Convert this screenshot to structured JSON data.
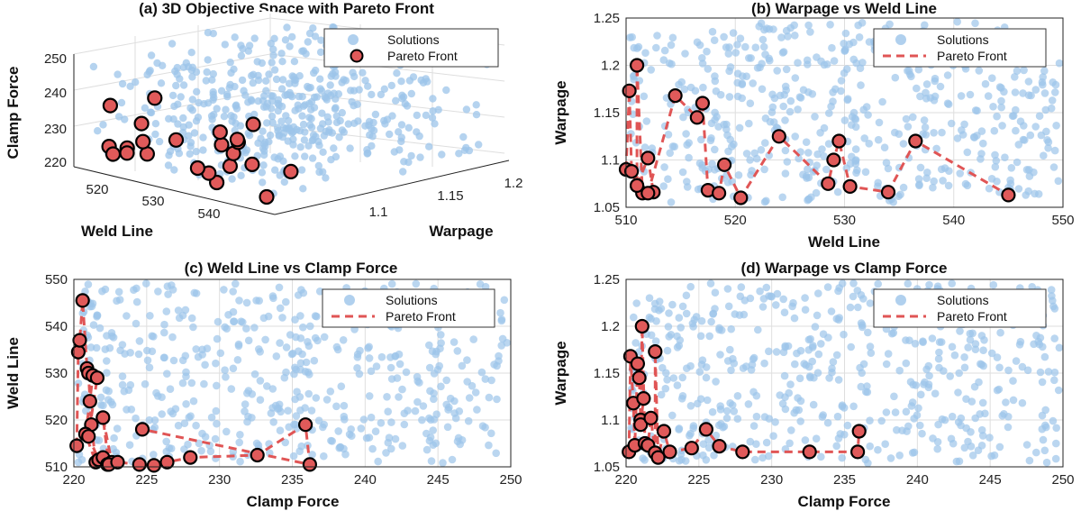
{
  "colors": {
    "solutions": "#9cc4ea",
    "pareto_fill": "#e05a5a",
    "pareto_edge": "#000000",
    "pareto_line": "#e05555"
  },
  "chart_data": [
    {
      "id": "a",
      "type": "scatter3d",
      "title": "(a) 3D Objective Space with Pareto Front",
      "xlabel": "Weld Line",
      "ylabel": "Warpage",
      "zlabel": "Clamp Force",
      "xticks": [
        "520",
        "530",
        "540"
      ],
      "yticks": [
        "1.1",
        "1.15",
        "1.2"
      ],
      "zticks": [
        "220",
        "230",
        "240",
        "250"
      ],
      "xlim": [
        510,
        550
      ],
      "ylim": [
        1.05,
        1.25
      ],
      "zlim": [
        220,
        250
      ],
      "legend": [
        "Solutions",
        "Pareto Front"
      ],
      "legend_position": "top-right",
      "pareto": [
        {
          "weld": 545,
          "warp": 1.063,
          "clamp": 220.5
        },
        {
          "weld": 537,
          "warp": 1.12,
          "clamp": 221.2
        },
        {
          "weld": 534,
          "warp": 1.066,
          "clamp": 221.0
        },
        {
          "weld": 531,
          "warp": 1.072,
          "clamp": 222.3
        },
        {
          "weld": 529,
          "warp": 1.12,
          "clamp": 220.8
        },
        {
          "weld": 529,
          "warp": 1.1,
          "clamp": 221.7
        },
        {
          "weld": 528,
          "warp": 1.075,
          "clamp": 222.6
        },
        {
          "weld": 524,
          "warp": 1.125,
          "clamp": 222.0
        },
        {
          "weld": 521,
          "warp": 1.06,
          "clamp": 225.5
        },
        {
          "weld": 519,
          "warp": 1.095,
          "clamp": 226.4
        },
        {
          "weld": 519,
          "warp": 1.065,
          "clamp": 228.0
        },
        {
          "weld": 518,
          "warp": 1.068,
          "clamp": 232.6
        },
        {
          "weld": 517,
          "warp": 1.16,
          "clamp": 220.6
        },
        {
          "weld": 517,
          "warp": 1.145,
          "clamp": 220.9
        },
        {
          "weld": 515,
          "warp": 1.168,
          "clamp": 220.2
        },
        {
          "weld": 513,
          "warp": 1.102,
          "clamp": 235.9
        },
        {
          "weld": 512,
          "warp": 1.065,
          "clamp": 224.5
        },
        {
          "weld": 512,
          "warp": 1.066,
          "clamp": 236.0
        },
        {
          "weld": 511,
          "warp": 1.073,
          "clamp": 221.5
        },
        {
          "weld": 511,
          "warp": 1.2,
          "clamp": 221.0
        },
        {
          "weld": 510.5,
          "warp": 1.088,
          "clamp": 222.0
        },
        {
          "weld": 510.3,
          "warp": 1.173,
          "clamp": 220.5
        },
        {
          "weld": 510,
          "warp": 1.09,
          "clamp": 220.3
        }
      ]
    },
    {
      "id": "b",
      "type": "scatter",
      "title": "(b) Warpage vs Weld Line",
      "xlabel": "Weld Line",
      "ylabel": "Warpage",
      "xlim": [
        510,
        550
      ],
      "ylim": [
        1.05,
        1.25
      ],
      "xticks": [
        510,
        520,
        530,
        540,
        550
      ],
      "yticks": [
        1.05,
        1.1,
        1.15,
        1.2,
        1.25
      ],
      "xtick_labels": [
        "510",
        "520",
        "530",
        "540",
        "550"
      ],
      "ytick_labels": [
        "1.05",
        "1.1",
        "1.15",
        "1.2",
        "1.25"
      ],
      "legend": [
        "Solutions",
        "Pareto Front"
      ],
      "legend_position": "top-right",
      "pareto_x": [
        510.0,
        510.3,
        510.5,
        511.0,
        511.0,
        511.5,
        511.0,
        512.0,
        512.5,
        512.0,
        514.5,
        516.5,
        517.0,
        517.5,
        518.5,
        519.0,
        520.5,
        524.0,
        528.5,
        529.0,
        529.5,
        530.5,
        534.0,
        536.5,
        545.0
      ],
      "pareto_y": [
        1.09,
        1.173,
        1.088,
        1.073,
        1.2,
        1.065,
        1.073,
        1.102,
        1.066,
        1.065,
        1.168,
        1.145,
        1.16,
        1.068,
        1.065,
        1.095,
        1.06,
        1.125,
        1.075,
        1.1,
        1.12,
        1.072,
        1.066,
        1.12,
        1.063
      ]
    },
    {
      "id": "c",
      "type": "scatter",
      "title": "(c) Weld Line vs Clamp Force",
      "xlabel": "Clamp Force",
      "ylabel": "Weld Line",
      "xlim": [
        220,
        250
      ],
      "ylim": [
        510,
        550
      ],
      "xticks": [
        220,
        225,
        230,
        235,
        240,
        245,
        250
      ],
      "yticks": [
        510,
        520,
        530,
        540,
        550
      ],
      "xtick_labels": [
        "220",
        "225",
        "230",
        "235",
        "240",
        "245",
        "250"
      ],
      "ytick_labels": [
        "510",
        "520",
        "530",
        "540",
        "550"
      ],
      "legend": [
        "Solutions",
        "Pareto Front"
      ],
      "legend_position": "top-right",
      "pareto_x": [
        220.2,
        220.3,
        220.4,
        220.6,
        220.9,
        221.0,
        221.2,
        221.5,
        220.8,
        221.1,
        221.3,
        221.6,
        221.0,
        221.7,
        222.0,
        222.3,
        222.6,
        222.0,
        222.4,
        223.0,
        224.5,
        225.5,
        226.4,
        228.0,
        232.6,
        235.9,
        236.2,
        224.7
      ],
      "pareto_y": [
        514.5,
        534.5,
        537.0,
        545.5,
        531.0,
        530.0,
        519.0,
        511.0,
        517.0,
        524.0,
        529.5,
        529.0,
        516.5,
        511.5,
        512.0,
        510.5,
        511.0,
        520.5,
        510.5,
        511.0,
        510.5,
        510.3,
        511.0,
        512.0,
        512.5,
        519.0,
        510.5,
        518.0
      ]
    },
    {
      "id": "d",
      "type": "scatter",
      "title": "(d) Warpage vs Clamp Force",
      "xlabel": "Clamp Force",
      "ylabel": "Warpage",
      "xlim": [
        220,
        250
      ],
      "ylim": [
        1.05,
        1.25
      ],
      "xticks": [
        220,
        225,
        230,
        235,
        240,
        245,
        250
      ],
      "yticks": [
        1.05,
        1.1,
        1.15,
        1.2,
        1.25
      ],
      "xtick_labels": [
        "220",
        "225",
        "230",
        "235",
        "240",
        "245",
        "250"
      ],
      "ytick_labels": [
        "1.05",
        "1.1",
        "1.15",
        "1.2",
        "1.25"
      ],
      "legend": [
        "Solutions",
        "Pareto Front"
      ],
      "legend_position": "top-right",
      "pareto_x": [
        220.2,
        220.3,
        220.5,
        220.6,
        220.8,
        220.9,
        221.0,
        221.2,
        221.0,
        221.1,
        221.3,
        221.5,
        221.7,
        222.0,
        222.0,
        222.2,
        222.6,
        223.0,
        224.5,
        225.5,
        226.4,
        228.0,
        232.6,
        235.9,
        236.0
      ],
      "pareto_y": [
        1.066,
        1.168,
        1.118,
        1.073,
        1.16,
        1.145,
        1.1,
        1.123,
        1.095,
        1.2,
        1.075,
        1.073,
        1.102,
        1.065,
        1.173,
        1.06,
        1.088,
        1.066,
        1.07,
        1.09,
        1.072,
        1.066,
        1.066,
        1.066,
        1.088
      ]
    }
  ]
}
